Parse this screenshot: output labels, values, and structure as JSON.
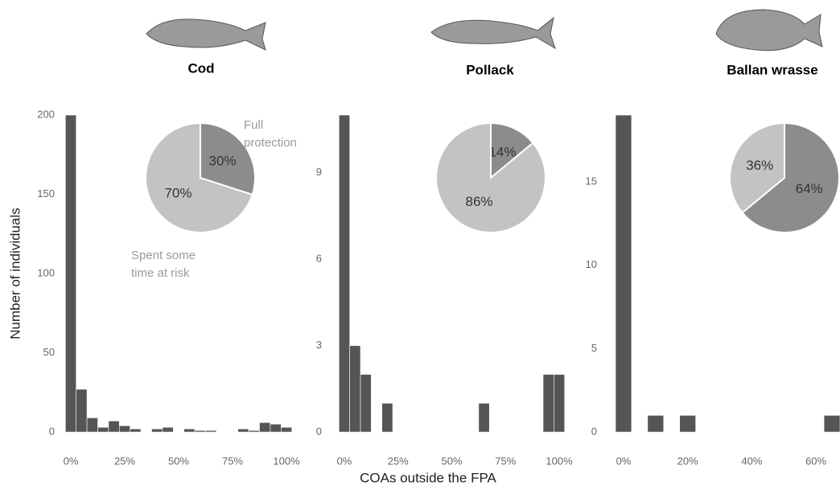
{
  "chart_data": [
    {
      "type": "histogram",
      "title": "Cod",
      "ylabel": "Number of individuals",
      "color": "#555555",
      "bins": [
        -2.5,
        2.5,
        7.5,
        12.5,
        17.5,
        22.5,
        27.5,
        32.5,
        37.5,
        42.5,
        47.5,
        52.5,
        57.5,
        62.5,
        67.5,
        72.5,
        77.5,
        82.5,
        87.5,
        92.5,
        97.5,
        102.5
      ],
      "values": [
        200,
        27,
        9,
        3,
        7,
        4,
        2,
        0,
        2,
        3,
        0,
        2,
        1,
        1,
        0,
        0,
        2,
        1,
        6,
        5,
        3
      ],
      "xlim": [
        -2.5,
        102.5
      ],
      "ylim": [
        0,
        200
      ],
      "xticks": [
        {
          "value": 0,
          "label": "0%"
        },
        {
          "value": 25,
          "label": "25%"
        },
        {
          "value": 50,
          "label": "50%"
        },
        {
          "value": 75,
          "label": "75%"
        },
        {
          "value": 100,
          "label": "100%"
        }
      ],
      "yticks": [
        0,
        50,
        100,
        150,
        200
      ],
      "inset": {
        "type": "pie",
        "categories": [
          "Full protection",
          "Spent some time at risk"
        ],
        "values": [
          30,
          70
        ],
        "value_labels": [
          "30%",
          "70%"
        ],
        "colors": [
          "#8c8c8c",
          "#c3c3c3"
        ]
      }
    },
    {
      "type": "histogram",
      "title": "Pollack",
      "xlabel": "COAs outside the FPA",
      "color": "#555555",
      "bins": [
        -2.5,
        2.5,
        7.5,
        12.5,
        17.5,
        22.5,
        27.5,
        32.5,
        37.5,
        42.5,
        47.5,
        52.5,
        57.5,
        62.5,
        67.5,
        72.5,
        77.5,
        82.5,
        87.5,
        92.5,
        97.5,
        102.5
      ],
      "values": [
        11,
        3,
        2,
        0,
        1,
        0,
        0,
        0,
        0,
        0,
        0,
        0,
        0,
        1,
        0,
        0,
        0,
        0,
        0,
        2,
        2
      ],
      "xlim": [
        -2.5,
        102.5
      ],
      "ylim": [
        0,
        11
      ],
      "xticks": [
        {
          "value": 0,
          "label": "0%"
        },
        {
          "value": 25,
          "label": "25%"
        },
        {
          "value": 50,
          "label": "50%"
        },
        {
          "value": 75,
          "label": "75%"
        },
        {
          "value": 100,
          "label": "100%"
        }
      ],
      "yticks": [
        0,
        3,
        6,
        9
      ],
      "inset": {
        "type": "pie",
        "values": [
          14,
          86
        ],
        "value_labels": [
          "14%",
          "86%"
        ],
        "colors": [
          "#8c8c8c",
          "#c3c3c3"
        ]
      }
    },
    {
      "type": "histogram",
      "title": "Ballan wrasse",
      "color": "#555555",
      "bins": [
        -2.5,
        2.5,
        7.5,
        12.5,
        17.5,
        22.5,
        27.5,
        32.5,
        37.5,
        42.5,
        47.5,
        52.5,
        57.5,
        62.5,
        67.5
      ],
      "values": [
        19,
        0,
        1,
        0,
        1,
        0,
        0,
        0,
        0,
        0,
        0,
        0,
        0,
        1
      ],
      "xlim": [
        -2.5,
        67.5
      ],
      "ylim": [
        0,
        19
      ],
      "xticks": [
        {
          "value": 0,
          "label": "0%"
        },
        {
          "value": 20,
          "label": "20%"
        },
        {
          "value": 40,
          "label": "40%"
        },
        {
          "value": 60,
          "label": "60%"
        }
      ],
      "yticks": [
        0,
        5,
        10,
        15
      ],
      "inset": {
        "type": "pie",
        "values": [
          64,
          36
        ],
        "value_labels": [
          "64%",
          "36%"
        ],
        "colors": [
          "#8c8c8c",
          "#c3c3c3"
        ]
      }
    }
  ]
}
